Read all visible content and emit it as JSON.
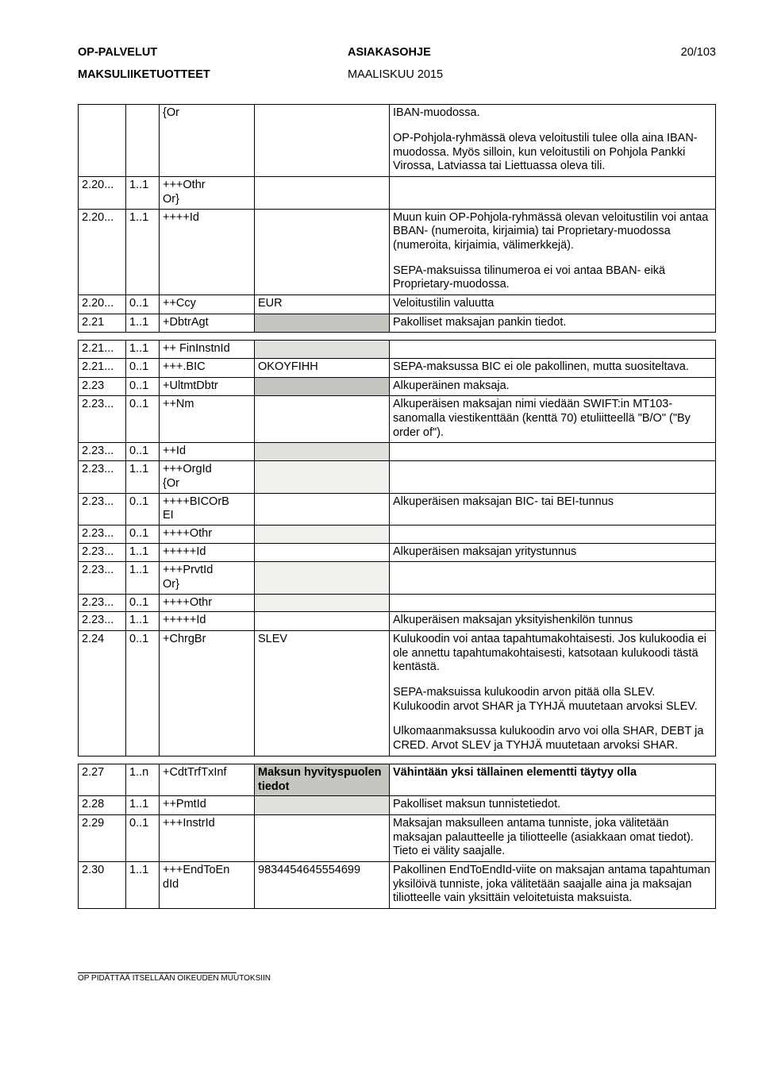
{
  "header": {
    "left1": "OP-PALVELUT",
    "mid1": "ASIAKASOHJE",
    "right1": "20/103",
    "left2": "MAKSULIIKETUOTTEET",
    "mid2": "MAALISKUU 2015"
  },
  "rows": [
    {
      "c1": "",
      "c2": "",
      "c3": "{Or",
      "c4": "",
      "c5": [
        "IBAN-muodossa.",
        "",
        "OP-Pohjola-ryhmässä oleva veloitustili tulee olla aina IBAN-muodossa. Myös silloin, kun veloitustili on Pohjola Pankki Virossa, Latviassa tai Liettuassa oleva tili."
      ],
      "c5spacer": true
    },
    {
      "c1": "2.20...",
      "c2": "1..1",
      "c3": "+++Othr\nOr}",
      "c4": "",
      "c5": [],
      "shade": "light"
    },
    {
      "c1": "2.20...",
      "c2": "1..1",
      "c3": "++++Id",
      "c4": "",
      "c5": [
        "Muun kuin OP-Pohjola-ryhmässä olevan veloitustilin voi antaa BBAN- (numeroita, kirjaimia) tai Proprietary-muodossa (numeroita, kirjaimia, välimerkkejä).",
        "",
        "SEPA-maksuissa tilinumeroa ei voi antaa BBAN- eikä Proprietary-muodossa."
      ],
      "c5spacer": true
    },
    {
      "c1": "2.20...",
      "c2": "0..1",
      "c3": "++Ccy",
      "c4": "EUR",
      "c5": [
        "Veloitustilin valuutta"
      ]
    },
    {
      "c1": "2.21",
      "c2": "1..1",
      "c3": "+DbtrAgt",
      "c4shade": "header",
      "c5": [
        "Pakolliset maksajan pankin tiedot."
      ]
    },
    {
      "sep": true
    },
    {
      "c1": "2.21...",
      "c2": "1..1",
      "c3": "++ FinInstnId",
      "c4shade": "mid",
      "c5": []
    },
    {
      "c1": "2.21...",
      "c2": "0..1",
      "c3": "+++.BIC",
      "c4": "OKOYFIHH",
      "c5": [
        "SEPA-maksussa BIC ei ole pakollinen, mutta suositeltava."
      ]
    },
    {
      "c1": "2.23",
      "c2": "0..1",
      "c3": "+UltmtDbtr",
      "c4shade": "header",
      "c5": [
        "Alkuperäinen maksaja."
      ]
    },
    {
      "c1": "2.23...",
      "c2": "0..1",
      "c3": "++Nm",
      "c4": "",
      "c5": [
        "Alkuperäisen maksajan nimi viedään SWIFT:in MT103-sanomalla viestikenttään (kenttä 70) etuliitteellä \"B/O\" (\"By order of\")."
      ]
    },
    {
      "c1": "2.23...",
      "c2": "0..1",
      "c3": "++Id",
      "c4shade": "mid",
      "c5": []
    },
    {
      "c1": "2.23...",
      "c2": "1..1",
      "c3": "+++OrgId\n{Or",
      "c4shade": "light",
      "c5": []
    },
    {
      "c1": "2.23...",
      "c2": "0..1",
      "c3": "++++BICOrB\nEI",
      "c4": "",
      "c5": [
        "Alkuperäisen maksajan BIC- tai BEI-tunnus"
      ]
    },
    {
      "c1": "2.23...",
      "c2": "0..1",
      "c3": "++++Othr",
      "c4shade": "light",
      "c5": []
    },
    {
      "c1": "2.23...",
      "c2": "1..1",
      "c3": "+++++Id",
      "c4": "",
      "c5": [
        "Alkuperäisen maksajan yritystunnus"
      ]
    },
    {
      "c1": "2.23...",
      "c2": "1..1",
      "c3": "+++PrvtId\nOr}",
      "c4shade": "light",
      "c5": []
    },
    {
      "c1": "2.23...",
      "c2": "0..1",
      "c3": "++++Othr",
      "c4shade": "light",
      "c5": []
    },
    {
      "c1": "2.23...",
      "c2": "1..1",
      "c3": "+++++Id",
      "c4": "",
      "c5": [
        "Alkuperäisen maksajan yksityishenkilön tunnus"
      ]
    },
    {
      "c1": "2.24",
      "c2": "0..1",
      "c3": "+ChrgBr",
      "c4": "SLEV",
      "c5": [
        "Kulukoodin voi antaa tapahtumakohtaisesti. Jos kulukoodia ei ole annettu tapahtumakohtaisesti, katsotaan kulukoodi tästä kentästä.",
        "",
        "SEPA-maksuissa kulukoodin arvon pitää olla SLEV. Kulukoodin arvot SHAR ja TYHJÄ muutetaan arvoksi SLEV.",
        "",
        "Ulkomaanmaksussa kulukoodin arvo voi olla SHAR, DEBT ja CRED. Arvot SLEV ja TYHJÄ muutetaan arvoksi SHAR."
      ],
      "c5spacer": true
    },
    {
      "sep": true
    },
    {
      "c1": "2.27",
      "c2": "1..n",
      "c3": "+CdtTrfTxInf",
      "c4": "Maksun hyvityspuolen tiedot",
      "c4shade": "header",
      "c5": [
        "Vähintään yksi tällainen elementti täytyy olla"
      ],
      "c5bold": true
    },
    {
      "c1": "2.28",
      "c2": "1..1",
      "c3": "++PmtId",
      "c4shade": "mid",
      "c5": [
        "Pakolliset maksun tunnistetiedot."
      ]
    },
    {
      "c1": "2.29",
      "c2": "0..1",
      "c3": "+++InstrId",
      "c4": "",
      "c5": [
        "Maksajan maksulleen antama tunniste, joka välitetään maksajan palautteelle ja tiliotteelle (asiakkaan omat tiedot). Tieto ei välity saajalle."
      ]
    },
    {
      "c1": "2.30",
      "c2": "1..1",
      "c3": "+++EndToEn\ndId",
      "c4": "9834454645554699",
      "c5": [
        "Pakollinen EndToEndId-viite on maksajan antama tapahtuman yksilöivä tunniste, joka välitetään saajalle aina ja maksajan tiliotteelle vain yksittäin veloitetuista maksuista."
      ]
    }
  ],
  "footer": "OP PIDÄTTÄÄ ITSELLÄÄN OIKEUDEN MUUTOKSIIN"
}
